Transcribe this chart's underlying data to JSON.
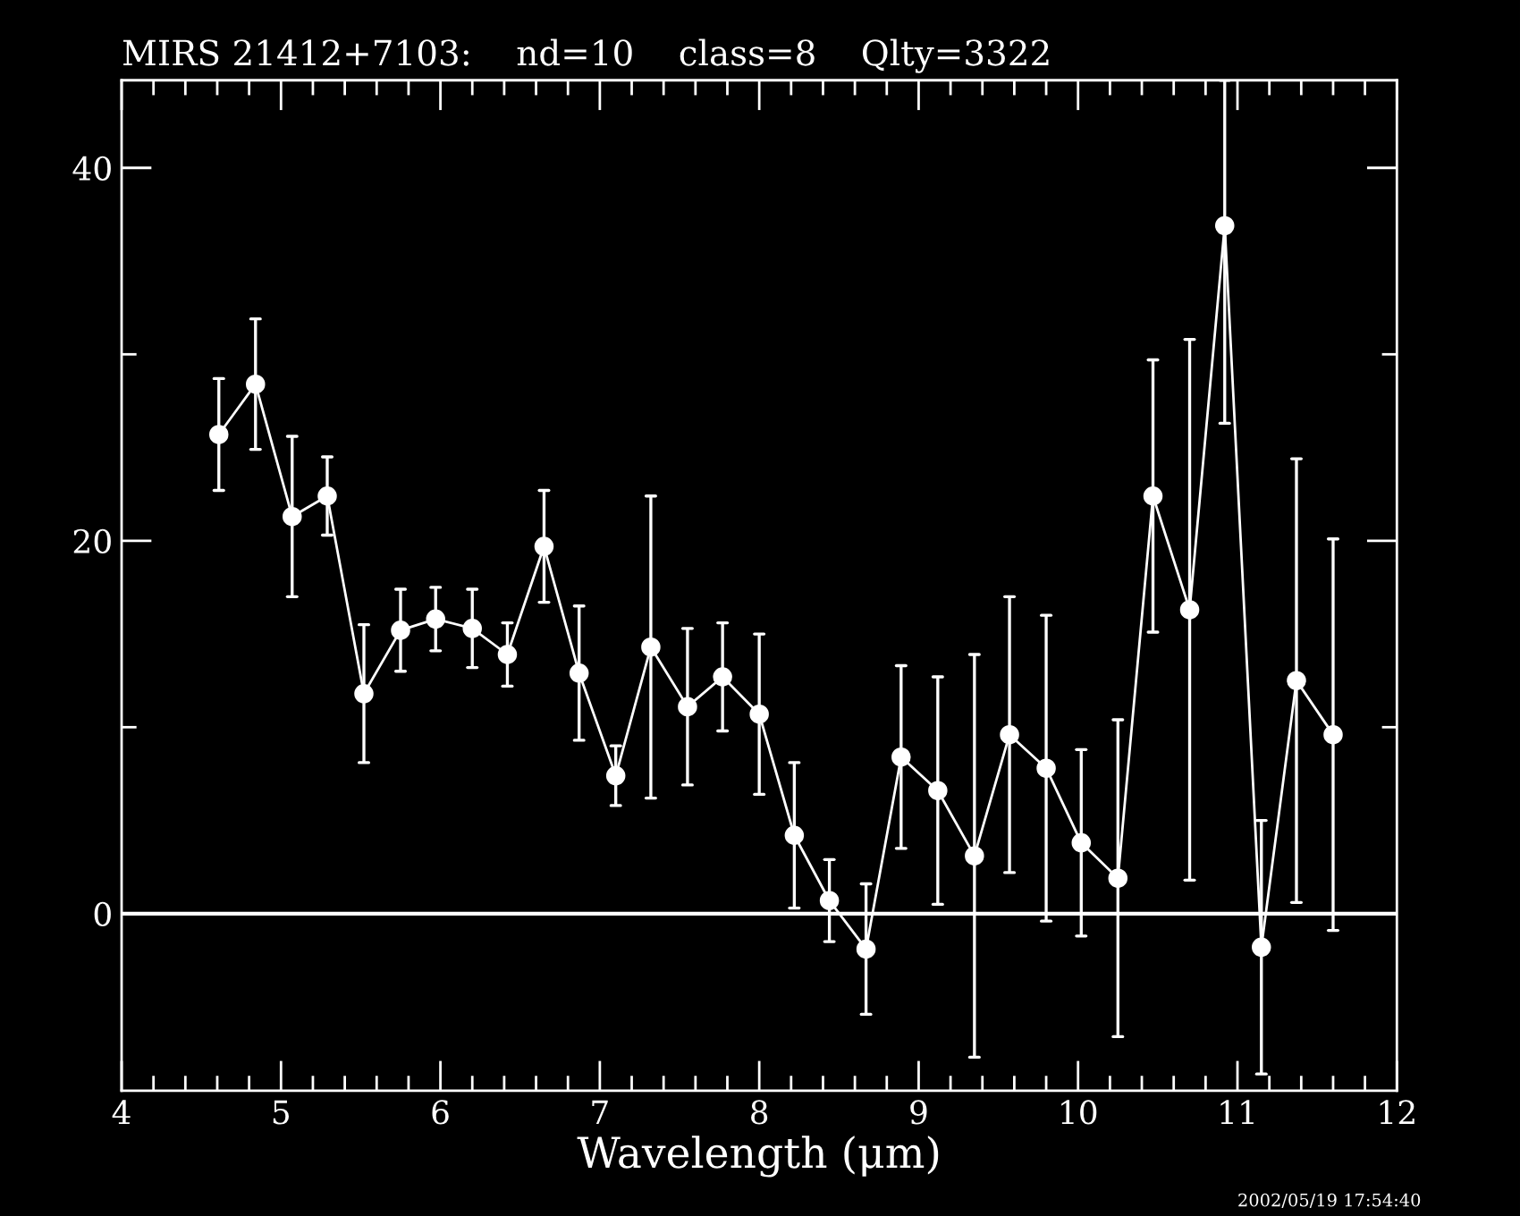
{
  "chart_data": {
    "type": "line",
    "title": "MIRS 21412+7103:    nd=10    class=8    Qlty=3322",
    "xlabel": "Wavelength (μm)",
    "annotations": [
      "2002/05/19 17:54:40"
    ],
    "x": [
      4.61,
      4.84,
      5.07,
      5.29,
      5.52,
      5.75,
      5.97,
      6.2,
      6.42,
      6.65,
      6.87,
      7.1,
      7.32,
      7.55,
      7.77,
      8.0,
      8.22,
      8.44,
      8.67,
      8.89,
      9.12,
      9.35,
      9.57,
      9.8,
      10.02,
      10.25,
      10.47,
      10.7,
      10.92,
      11.15,
      11.37,
      11.6
    ],
    "series": [
      {
        "color": "#ffffff",
        "values": [
          25.7,
          28.4,
          21.3,
          22.4,
          11.8,
          15.2,
          15.8,
          15.3,
          13.9,
          19.7,
          12.9,
          7.4,
          14.3,
          11.1,
          12.7,
          10.7,
          4.2,
          0.7,
          -1.9,
          8.4,
          6.6,
          3.1,
          9.6,
          7.8,
          3.8,
          1.9,
          22.4,
          16.3,
          36.9,
          -1.8,
          12.5,
          9.6
        ],
        "errors": [
          3.0,
          3.5,
          4.3,
          2.1,
          3.7,
          2.2,
          1.7,
          2.1,
          1.7,
          3.0,
          3.6,
          1.6,
          8.1,
          4.2,
          2.9,
          4.3,
          3.9,
          2.2,
          3.5,
          4.9,
          6.1,
          10.8,
          7.4,
          8.2,
          5.0,
          8.5,
          7.3,
          14.5,
          [
            26.3,
            44.7
          ],
          6.8,
          11.9,
          10.5
        ]
      }
    ],
    "marker": "circle",
    "line_style": "solid",
    "xlim": [
      4,
      12
    ],
    "ylim": [
      -9.5,
      44.7
    ],
    "xticks": [
      4,
      {
        "value": 4.2,
        "label": null
      },
      {
        "value": 4.4,
        "label": null
      },
      {
        "value": 4.6,
        "label": null
      },
      {
        "value": 4.8,
        "label": null
      },
      5,
      {
        "value": 5.2,
        "label": null
      },
      {
        "value": 5.4,
        "label": null
      },
      {
        "value": 5.6,
        "label": null
      },
      {
        "value": 5.8,
        "label": null
      },
      6,
      {
        "value": 6.2,
        "label": null
      },
      {
        "value": 6.4,
        "label": null
      },
      {
        "value": 6.6,
        "label": null
      },
      {
        "value": 6.8,
        "label": null
      },
      7,
      {
        "value": 7.2,
        "label": null
      },
      {
        "value": 7.4,
        "label": null
      },
      {
        "value": 7.6,
        "label": null
      },
      {
        "value": 7.8,
        "label": null
      },
      8,
      {
        "value": 8.2,
        "label": null
      },
      {
        "value": 8.4,
        "label": null
      },
      {
        "value": 8.6,
        "label": null
      },
      {
        "value": 8.8,
        "label": null
      },
      9,
      {
        "value": 9.2,
        "label": null
      },
      {
        "value": 9.4,
        "label": null
      },
      {
        "value": 9.6,
        "label": null
      },
      {
        "value": 9.8,
        "label": null
      },
      10,
      {
        "value": 10.2,
        "label": null
      },
      {
        "value": 10.4,
        "label": null
      },
      {
        "value": 10.6,
        "label": null
      },
      {
        "value": 10.8,
        "label": null
      },
      11,
      {
        "value": 11.2,
        "label": null
      },
      {
        "value": 11.4,
        "label": null
      },
      {
        "value": 11.6,
        "label": null
      },
      {
        "value": 11.8,
        "label": null
      },
      12
    ],
    "yticks": [
      0,
      {
        "value": 10,
        "label": null
      },
      20,
      {
        "value": 30,
        "label": null
      },
      40
    ],
    "ref_lines": [
      {
        "axis": "y",
        "value": 0,
        "color": "#ffffff"
      }
    ],
    "grid": false,
    "legend": false
  }
}
